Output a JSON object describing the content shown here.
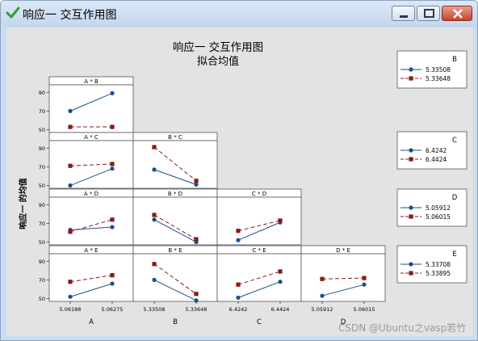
{
  "window": {
    "title": "响应一 交互作用图",
    "controls": [
      "minimize",
      "maximize",
      "close"
    ],
    "icon": "green-check-icon"
  },
  "chart_data": {
    "type": "line",
    "title": "响应一 交互作用图",
    "subtitle": "拟合均值",
    "ylabel": "响应一 的均值",
    "ylim": [
      47,
      98
    ],
    "yticks": [
      50,
      70,
      90
    ],
    "factors": [
      {
        "name": "A",
        "levels": [
          "5.06188",
          "5.06275"
        ]
      },
      {
        "name": "B",
        "levels": [
          "5.33508",
          "5.33648"
        ]
      },
      {
        "name": "C",
        "levels": [
          "6.4242",
          "6.4424"
        ]
      },
      {
        "name": "D",
        "levels": [
          "5.05912",
          "5.06015"
        ]
      },
      {
        "name": "E",
        "levels": [
          "5.33708",
          "5.33895"
        ]
      }
    ],
    "legends": [
      {
        "factor": "B",
        "entries": [
          "5.33508",
          "5.33648"
        ]
      },
      {
        "factor": "C",
        "entries": [
          "6.4242",
          "6.4424"
        ]
      },
      {
        "factor": "D",
        "entries": [
          "5.05912",
          "5.06015"
        ]
      },
      {
        "factor": "E",
        "entries": [
          "5.33708",
          "5.33895"
        ]
      }
    ],
    "panels": [
      {
        "label": "A * B",
        "row": 0,
        "col": 0,
        "series": [
          {
            "values": [
              70,
              89
            ]
          },
          {
            "values": [
              53,
              53
            ]
          }
        ]
      },
      {
        "label": "A * C",
        "row": 1,
        "col": 0,
        "series": [
          {
            "values": [
              50,
              68
            ]
          },
          {
            "values": [
              71,
              73
            ]
          }
        ]
      },
      {
        "label": "B * C",
        "row": 1,
        "col": 1,
        "series": [
          {
            "values": [
              67,
              51
            ]
          },
          {
            "values": [
              91,
              55
            ]
          }
        ]
      },
      {
        "label": "A * D",
        "row": 2,
        "col": 0,
        "series": [
          {
            "values": [
              63,
              66
            ]
          },
          {
            "values": [
              61,
              74
            ]
          }
        ]
      },
      {
        "label": "B * D",
        "row": 2,
        "col": 1,
        "series": [
          {
            "values": [
              74,
              50
            ]
          },
          {
            "values": [
              79,
              53
            ]
          }
        ]
      },
      {
        "label": "C * D",
        "row": 2,
        "col": 2,
        "series": [
          {
            "values": [
              52,
              71
            ]
          },
          {
            "values": [
              62,
              73
            ]
          }
        ]
      },
      {
        "label": "A * E",
        "row": 3,
        "col": 0,
        "series": [
          {
            "values": [
              52,
              66
            ]
          },
          {
            "values": [
              68,
              75
            ]
          }
        ]
      },
      {
        "label": "B * E",
        "row": 3,
        "col": 1,
        "series": [
          {
            "values": [
              70,
              48
            ]
          },
          {
            "values": [
              87,
              55
            ]
          }
        ]
      },
      {
        "label": "C * E",
        "row": 3,
        "col": 2,
        "series": [
          {
            "values": [
              51,
              68
            ]
          },
          {
            "values": [
              65,
              79
            ]
          }
        ]
      },
      {
        "label": "D * E",
        "row": 3,
        "col": 3,
        "series": [
          {
            "values": [
              53,
              65
            ]
          },
          {
            "values": [
              71,
              72
            ]
          }
        ]
      }
    ],
    "series_colors": [
      "#1a4e8c",
      "#8b1818"
    ],
    "series_styles": [
      "solid-circle",
      "dashed-square"
    ]
  },
  "watermark": "CSDN @Ubuntu之vasp若竹"
}
